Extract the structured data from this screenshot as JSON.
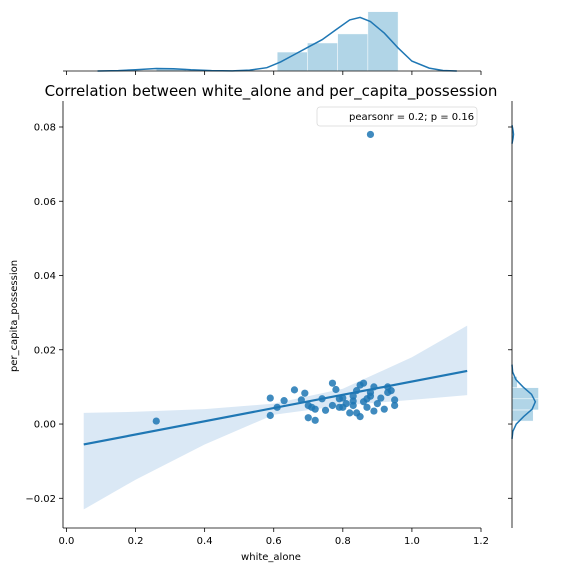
{
  "chart_data": {
    "type": "scatter",
    "title": "Correlation between white_alone and per_capita_possession",
    "xlabel": "white_alone",
    "ylabel": "per_capita_possession",
    "xlim": [
      -0.01,
      1.2
    ],
    "ylim": [
      -0.028,
      0.087
    ],
    "xticks": [
      0.0,
      0.2,
      0.4,
      0.6,
      0.8,
      1.0,
      1.2
    ],
    "xtick_labels": [
      "0.0",
      "0.2",
      "0.4",
      "0.6",
      "0.8",
      "1.0",
      "1.2"
    ],
    "yticks": [
      -0.02,
      0.0,
      0.02,
      0.04,
      0.06,
      0.08
    ],
    "ytick_labels": [
      "−0.02",
      "0.00",
      "0.02",
      "0.04",
      "0.06",
      "0.08"
    ],
    "legend": {
      "text": "pearsonr = 0.2; p = 0.16",
      "placement": "top-right"
    },
    "grid": false,
    "colors": {
      "points": "#1f77b4",
      "line": "#1f77b4",
      "band": "#c6dbef",
      "hist": "#9ecae1"
    },
    "points": [
      {
        "x": 0.26,
        "y": 0.0008
      },
      {
        "x": 0.59,
        "y": 0.007
      },
      {
        "x": 0.59,
        "y": 0.0023
      },
      {
        "x": 0.61,
        "y": 0.0045
      },
      {
        "x": 0.63,
        "y": 0.0063
      },
      {
        "x": 0.66,
        "y": 0.0092
      },
      {
        "x": 0.68,
        "y": 0.0065
      },
      {
        "x": 0.69,
        "y": 0.0083
      },
      {
        "x": 0.7,
        "y": 0.005
      },
      {
        "x": 0.7,
        "y": 0.0017
      },
      {
        "x": 0.71,
        "y": 0.0045
      },
      {
        "x": 0.72,
        "y": 0.004
      },
      {
        "x": 0.72,
        "y": 0.001
      },
      {
        "x": 0.74,
        "y": 0.0068
      },
      {
        "x": 0.75,
        "y": 0.0037
      },
      {
        "x": 0.77,
        "y": 0.011
      },
      {
        "x": 0.77,
        "y": 0.005
      },
      {
        "x": 0.78,
        "y": 0.0093
      },
      {
        "x": 0.79,
        "y": 0.0045
      },
      {
        "x": 0.79,
        "y": 0.0068
      },
      {
        "x": 0.8,
        "y": 0.007
      },
      {
        "x": 0.8,
        "y": 0.0045
      },
      {
        "x": 0.81,
        "y": 0.0055
      },
      {
        "x": 0.82,
        "y": 0.003
      },
      {
        "x": 0.83,
        "y": 0.0075
      },
      {
        "x": 0.83,
        "y": 0.005
      },
      {
        "x": 0.83,
        "y": 0.0062
      },
      {
        "x": 0.84,
        "y": 0.009
      },
      {
        "x": 0.84,
        "y": 0.003
      },
      {
        "x": 0.85,
        "y": 0.0105
      },
      {
        "x": 0.85,
        "y": 0.002
      },
      {
        "x": 0.86,
        "y": 0.011
      },
      {
        "x": 0.86,
        "y": 0.006
      },
      {
        "x": 0.87,
        "y": 0.0068
      },
      {
        "x": 0.87,
        "y": 0.0045
      },
      {
        "x": 0.88,
        "y": 0.0085
      },
      {
        "x": 0.88,
        "y": 0.0075
      },
      {
        "x": 0.89,
        "y": 0.0035
      },
      {
        "x": 0.89,
        "y": 0.01
      },
      {
        "x": 0.9,
        "y": 0.0055
      },
      {
        "x": 0.91,
        "y": 0.007
      },
      {
        "x": 0.92,
        "y": 0.004
      },
      {
        "x": 0.93,
        "y": 0.0085
      },
      {
        "x": 0.93,
        "y": 0.01
      },
      {
        "x": 0.94,
        "y": 0.009
      },
      {
        "x": 0.95,
        "y": 0.0065
      },
      {
        "x": 0.95,
        "y": 0.005
      },
      {
        "x": 0.88,
        "y": 0.078
      }
    ],
    "regression_line": {
      "x": [
        0.05,
        1.16
      ],
      "y": [
        -0.0055,
        0.0143
      ]
    },
    "confidence_band": {
      "x": [
        0.05,
        0.2,
        0.4,
        0.6,
        0.8,
        1.0,
        1.16
      ],
      "lower": [
        -0.023,
        -0.015,
        -0.0055,
        0.0025,
        0.005,
        0.0065,
        0.0078
      ],
      "upper": [
        0.003,
        0.0033,
        0.004,
        0.0055,
        0.0095,
        0.018,
        0.0265
      ]
    },
    "marginal_x_hist": {
      "bins": [
        0.26,
        0.3475,
        0.435,
        0.5225,
        0.61,
        0.6975,
        0.785,
        0.8725,
        0.96
      ],
      "density": [
        0.3,
        0.0,
        0.0,
        0.0,
        2.3,
        3.4,
        4.5,
        7.2
      ],
      "kde_x": [
        0.09,
        0.15,
        0.2,
        0.26,
        0.31,
        0.36,
        0.42,
        0.48,
        0.53,
        0.58,
        0.62,
        0.66,
        0.7,
        0.74,
        0.78,
        0.82,
        0.85,
        0.88,
        0.92,
        0.96,
        1.0,
        1.05,
        1.09,
        1.13
      ],
      "kde_y": [
        0.0,
        0.05,
        0.15,
        0.3,
        0.28,
        0.15,
        0.05,
        0.02,
        0.1,
        0.4,
        1.1,
        2.0,
        2.9,
        3.8,
        5.0,
        6.2,
        6.5,
        6.0,
        4.6,
        2.8,
        1.2,
        0.35,
        0.06,
        0.0
      ]
    },
    "marginal_y_hist": {
      "bins": [
        0.0008,
        0.0038,
        0.0068,
        0.0098,
        0.0128
      ],
      "density": [
        100,
        125,
        125,
        25
      ],
      "outlier_bins": [
        0.0768,
        0.0798
      ],
      "outlier_density": [
        6
      ],
      "kde_y": [
        -0.004,
        -0.002,
        0.0,
        0.002,
        0.004,
        0.006,
        0.008,
        0.01,
        0.012,
        0.014,
        0.016
      ],
      "kde_x": [
        0,
        4,
        20,
        55,
        95,
        110,
        92,
        52,
        18,
        3,
        0
      ],
      "outlier_kde_y": [
        0.0755,
        0.077,
        0.078,
        0.079,
        0.0805
      ],
      "outlier_kde_x": [
        0,
        5,
        7,
        5,
        0
      ]
    }
  }
}
